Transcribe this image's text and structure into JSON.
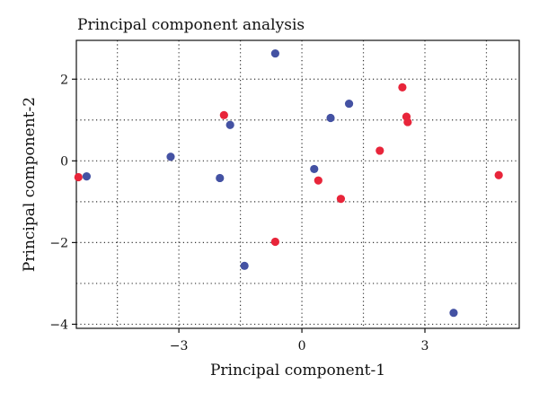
{
  "chart_data": {
    "type": "scatter",
    "title": "Principal component analysis",
    "xlabel": "Principal component-1",
    "ylabel": "Principal component-2",
    "xlim": [
      -5.5,
      5.3
    ],
    "ylim": [
      -4.1,
      2.95
    ],
    "x_ticks": [
      -3,
      0,
      3
    ],
    "y_ticks": [
      -4,
      -2,
      0,
      2
    ],
    "x_grid": [
      -4.5,
      -3,
      -1.5,
      0,
      1.5,
      3,
      4.5
    ],
    "y_grid": [
      -4,
      -3,
      -2,
      -1,
      0,
      1,
      2
    ],
    "grid": true,
    "grid_style": "dotted",
    "series": [
      {
        "color": "#e8253a",
        "points": [
          {
            "x": -5.45,
            "y": -0.4
          },
          {
            "x": -1.9,
            "y": 1.12
          },
          {
            "x": -0.65,
            "y": -1.98
          },
          {
            "x": 0.4,
            "y": -0.48
          },
          {
            "x": 0.95,
            "y": -0.93
          },
          {
            "x": 1.9,
            "y": 0.25
          },
          {
            "x": 2.45,
            "y": 1.8
          },
          {
            "x": 2.55,
            "y": 1.08
          },
          {
            "x": 2.58,
            "y": 0.95
          },
          {
            "x": 4.8,
            "y": -0.35
          }
        ]
      },
      {
        "color": "#4452a3",
        "points": [
          {
            "x": -5.25,
            "y": -0.38
          },
          {
            "x": -3.2,
            "y": 0.1
          },
          {
            "x": -2.0,
            "y": -0.42
          },
          {
            "x": -1.75,
            "y": 0.88
          },
          {
            "x": -1.4,
            "y": -2.57
          },
          {
            "x": -0.65,
            "y": 2.63
          },
          {
            "x": 0.3,
            "y": -0.2
          },
          {
            "x": 0.7,
            "y": 1.05
          },
          {
            "x": 1.15,
            "y": 1.4
          },
          {
            "x": 3.7,
            "y": -3.72
          }
        ]
      }
    ]
  }
}
